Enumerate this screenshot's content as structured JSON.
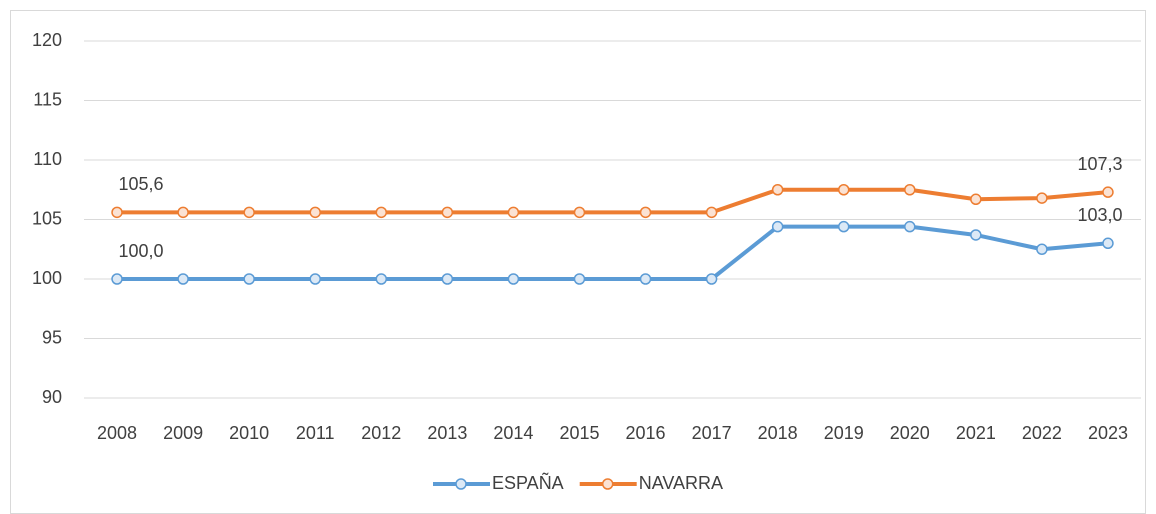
{
  "chart_data": {
    "type": "line",
    "categories": [
      "2008",
      "2009",
      "2010",
      "2011",
      "2012",
      "2013",
      "2014",
      "2015",
      "2016",
      "2017",
      "2018",
      "2019",
      "2020",
      "2021",
      "2022",
      "2023"
    ],
    "series": [
      {
        "name": "ESPAÑA",
        "color": "#5b9bd5",
        "values": [
          100,
          100,
          100,
          100,
          100,
          100,
          100,
          100,
          100,
          100,
          104.4,
          104.4,
          104.4,
          103.7,
          102.5,
          103.0
        ],
        "value_labels": [
          "100,0",
          null,
          null,
          null,
          null,
          null,
          null,
          null,
          null,
          null,
          null,
          null,
          null,
          null,
          null,
          "103,0"
        ]
      },
      {
        "name": "NAVARRA",
        "color": "#ed7d31",
        "values": [
          105.6,
          105.6,
          105.6,
          105.6,
          105.6,
          105.6,
          105.6,
          105.6,
          105.6,
          105.6,
          107.5,
          107.5,
          107.5,
          106.7,
          106.8,
          107.3
        ],
        "value_labels": [
          "105,6",
          null,
          null,
          null,
          null,
          null,
          null,
          null,
          null,
          null,
          null,
          null,
          null,
          null,
          null,
          "107,3"
        ]
      }
    ],
    "ylim": [
      90,
      120
    ],
    "yticks": [
      90,
      95,
      100,
      105,
      110,
      115,
      120
    ],
    "grid": true,
    "legend": "bottom"
  }
}
